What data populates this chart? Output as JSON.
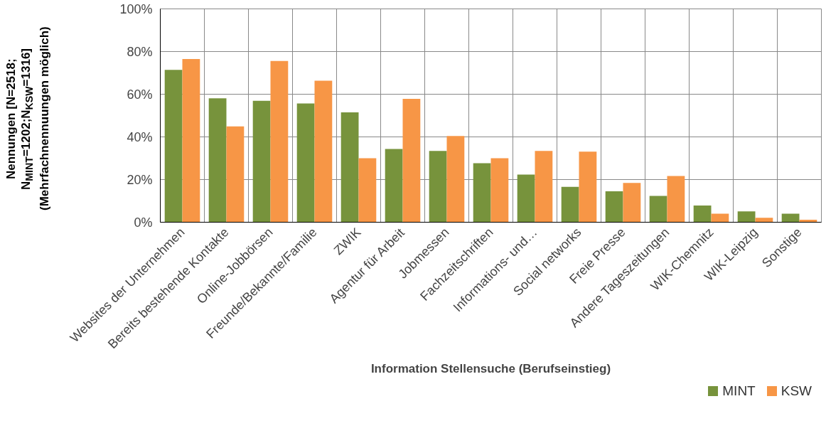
{
  "chart_data": {
    "type": "bar",
    "xlabel": "Information Stellensuche (Berufseinstieg)",
    "ylabel": "Nennungen [N=2518;\nN$_{MINT}$=1202;N$_{KSW}$=1316]\n(Mehrfachnennuungen möglich)",
    "categories": [
      "Websites der Unternehmen",
      "Bereits bestehende Kontakte",
      "Online-Jobbörsen",
      "Freunde/Bekannte/Familie",
      "ZWIK",
      "Agentur für Arbeit",
      "Jobmessen",
      "Fachzeitschriften",
      "Informations- und…",
      "Social networks",
      "Freie Presse",
      "Andere Tageszeitungen",
      "WIK-Chemnitz",
      "WIK-Leipzig",
      "Sonstige"
    ],
    "series": [
      {
        "name": "MINT",
        "color": "#77933c",
        "values": [
          71.4,
          58.1,
          56.9,
          55.7,
          51.5,
          34.3,
          33.4,
          27.7,
          22.3,
          16.6,
          14.5,
          12.3,
          7.8,
          5.1,
          4.0
        ]
      },
      {
        "name": "KSW",
        "color": "#f79646",
        "values": [
          76.5,
          44.9,
          75.6,
          66.3,
          30.0,
          57.8,
          40.4,
          30.0,
          33.4,
          33.1,
          18.4,
          21.7,
          4.0,
          2.1,
          1.2
        ]
      }
    ],
    "ylim": [
      0,
      100
    ],
    "yticks": [
      {
        "value": 0,
        "label": "0%"
      },
      {
        "value": 20,
        "label": "20%"
      },
      {
        "value": 40,
        "label": "40%"
      },
      {
        "value": 60,
        "label": "60%"
      },
      {
        "value": 80,
        "label": "80%"
      },
      {
        "value": 100,
        "label": "100%"
      }
    ],
    "grid": true,
    "legend": "bottom right"
  }
}
